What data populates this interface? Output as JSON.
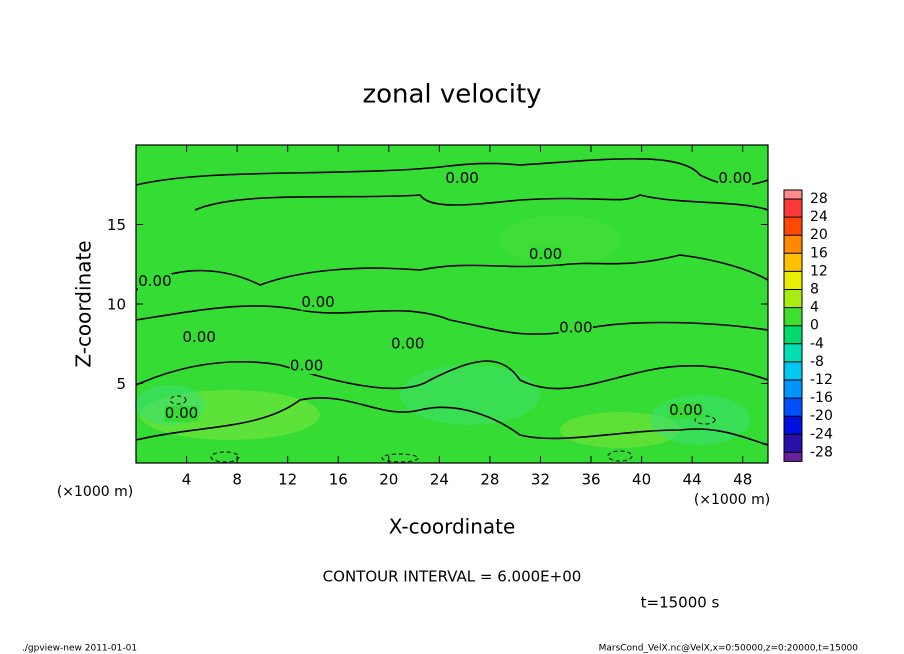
{
  "chart_data": {
    "type": "contour",
    "title": "zonal velocity",
    "x_label": "X-coordinate",
    "y_label": "Z-coordinate",
    "x_unit": "(×1000 m)",
    "xlim": [
      0,
      50
    ],
    "xticks": [
      4,
      8,
      12,
      16,
      20,
      24,
      28,
      32,
      36,
      40,
      44,
      48
    ],
    "ylim": [
      0,
      20
    ],
    "yticks": [
      5,
      10,
      15
    ],
    "contour_interval": "CONTOUR INTERVAL = 6.000E+00",
    "time": "t=15000 s",
    "colorbar": {
      "levels": [
        -28,
        -24,
        -20,
        -16,
        -12,
        -8,
        -4,
        0,
        4,
        8,
        12,
        16,
        20,
        24,
        28
      ],
      "colors": [
        "#6a1ea0",
        "#2a10a8",
        "#0010e0",
        "#0050ff",
        "#0094ff",
        "#00c8f0",
        "#00e0b4",
        "#00dc6c",
        "#3ee030",
        "#a8ec10",
        "#e8f000",
        "#ffc000",
        "#ff8a00",
        "#ff4800",
        "#ff3838",
        "#ff8c8c"
      ]
    },
    "contour_labels": [
      {
        "label": "0.00",
        "x": 25.8,
        "z": 17.9
      },
      {
        "label": "0.00",
        "x": 47.4,
        "z": 17.9
      },
      {
        "label": "0.00",
        "x": 32.4,
        "z": 13.1
      },
      {
        "label": "0.00",
        "x": 1.5,
        "z": 11.4
      },
      {
        "label": "0.00",
        "x": 14.4,
        "z": 10.1
      },
      {
        "label": "0.00",
        "x": 34.8,
        "z": 8.5
      },
      {
        "label": "0.00",
        "x": 5.0,
        "z": 7.9
      },
      {
        "label": "0.00",
        "x": 21.5,
        "z": 7.5
      },
      {
        "label": "0.00",
        "x": 13.5,
        "z": 6.1
      },
      {
        "label": "0.00",
        "x": 3.6,
        "z": 3.1
      },
      {
        "label": "0.00",
        "x": 43.5,
        "z": 3.3
      }
    ],
    "footer_left": "./gpview-new  2011-01-01",
    "footer_right": "MarsCond_VelX.nc@VelX,x=0:50000,z=0:20000,t=15000"
  }
}
